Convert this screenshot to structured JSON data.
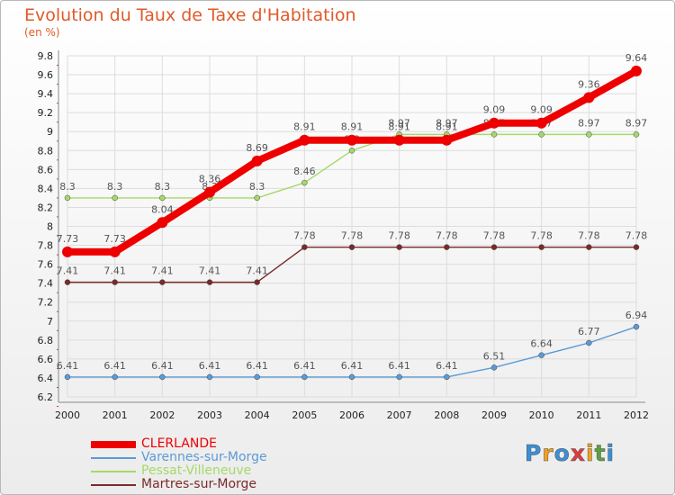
{
  "title": "Evolution du Taux de Taxe d'Habitation",
  "subtitle": "(en %)",
  "logo": {
    "text": "Proxiti",
    "colors": [
      "#3a8fd6",
      "#f0a020",
      "#3a8fd6",
      "#e03c3c",
      "#f0a020",
      "#5aa040",
      "#3a8fd6"
    ]
  },
  "chart_data": {
    "type": "line",
    "x": [
      "2000",
      "2001",
      "2002",
      "2003",
      "2004",
      "2005",
      "2006",
      "2007",
      "2008",
      "2009",
      "2010",
      "2011",
      "2012"
    ],
    "ylim": [
      6.2,
      9.8
    ],
    "yticks": [
      "6.2",
      "6.4",
      "6.6",
      "6.8",
      "7",
      "7.2",
      "7.4",
      "7.6",
      "7.8",
      "8",
      "8.2",
      "8.4",
      "8.6",
      "8.8",
      "9",
      "9.2",
      "9.4",
      "9.6",
      "9.8"
    ],
    "grid": true,
    "legend_position": "bottom-left",
    "series": [
      {
        "name": "Martres-sur-Morge",
        "color": "#7a2a2a",
        "values": [
          7.41,
          7.41,
          7.41,
          7.41,
          7.41,
          7.78,
          7.78,
          7.78,
          7.78,
          7.78,
          7.78,
          7.78,
          7.78
        ],
        "labels": [
          "7.41",
          "7.41",
          "7.41",
          "7.41",
          "7.41",
          "7.78",
          "7.78",
          "7.78",
          "7.78",
          "7.78",
          "7.78",
          "7.78",
          "7.78"
        ]
      },
      {
        "name": "Varennes-sur-Morge",
        "color": "#5b9bd5",
        "values": [
          6.41,
          6.41,
          6.41,
          6.41,
          6.41,
          6.41,
          6.41,
          6.41,
          6.41,
          6.51,
          6.64,
          6.77,
          6.94
        ],
        "labels": [
          "6.41",
          "6.41",
          "6.41",
          "6.41",
          "6.41",
          "6.41",
          "6.41",
          "6.41",
          "6.41",
          "6.51",
          "6.64",
          "6.77",
          "6.94"
        ]
      },
      {
        "name": "Pessat-Villeneuve",
        "color": "#a5d96a",
        "values": [
          8.3,
          8.3,
          8.3,
          8.3,
          8.3,
          8.46,
          8.8,
          8.97,
          8.97,
          8.97,
          8.97,
          8.97,
          8.97
        ],
        "labels": [
          "8.3",
          "8.3",
          "8.3",
          "8.3",
          "8.3",
          "8.46",
          "8.8",
          "8.97",
          "8.97",
          "8.97",
          "8.97",
          "8.97",
          "8.97"
        ]
      },
      {
        "name": "CLERLANDE",
        "color": "#ee0000",
        "values": [
          7.73,
          7.73,
          8.04,
          8.36,
          8.69,
          8.91,
          8.91,
          8.91,
          8.91,
          9.09,
          9.09,
          9.36,
          9.64
        ],
        "labels": [
          "7.73",
          "7.73",
          "8.04",
          "8.36",
          "8.69",
          "8.91",
          "8.91",
          "8.91",
          "8.91",
          "9.09",
          "9.09",
          "9.36",
          "9.64"
        ]
      }
    ]
  },
  "legend": [
    {
      "label": "CLERLANDE",
      "color": "#ee0000"
    },
    {
      "label": "Varennes-sur-Morge",
      "color": "#5b9bd5"
    },
    {
      "label": "Pessat-Villeneuve",
      "color": "#a5d96a"
    },
    {
      "label": "Martres-sur-Morge",
      "color": "#7a2a2a"
    }
  ]
}
